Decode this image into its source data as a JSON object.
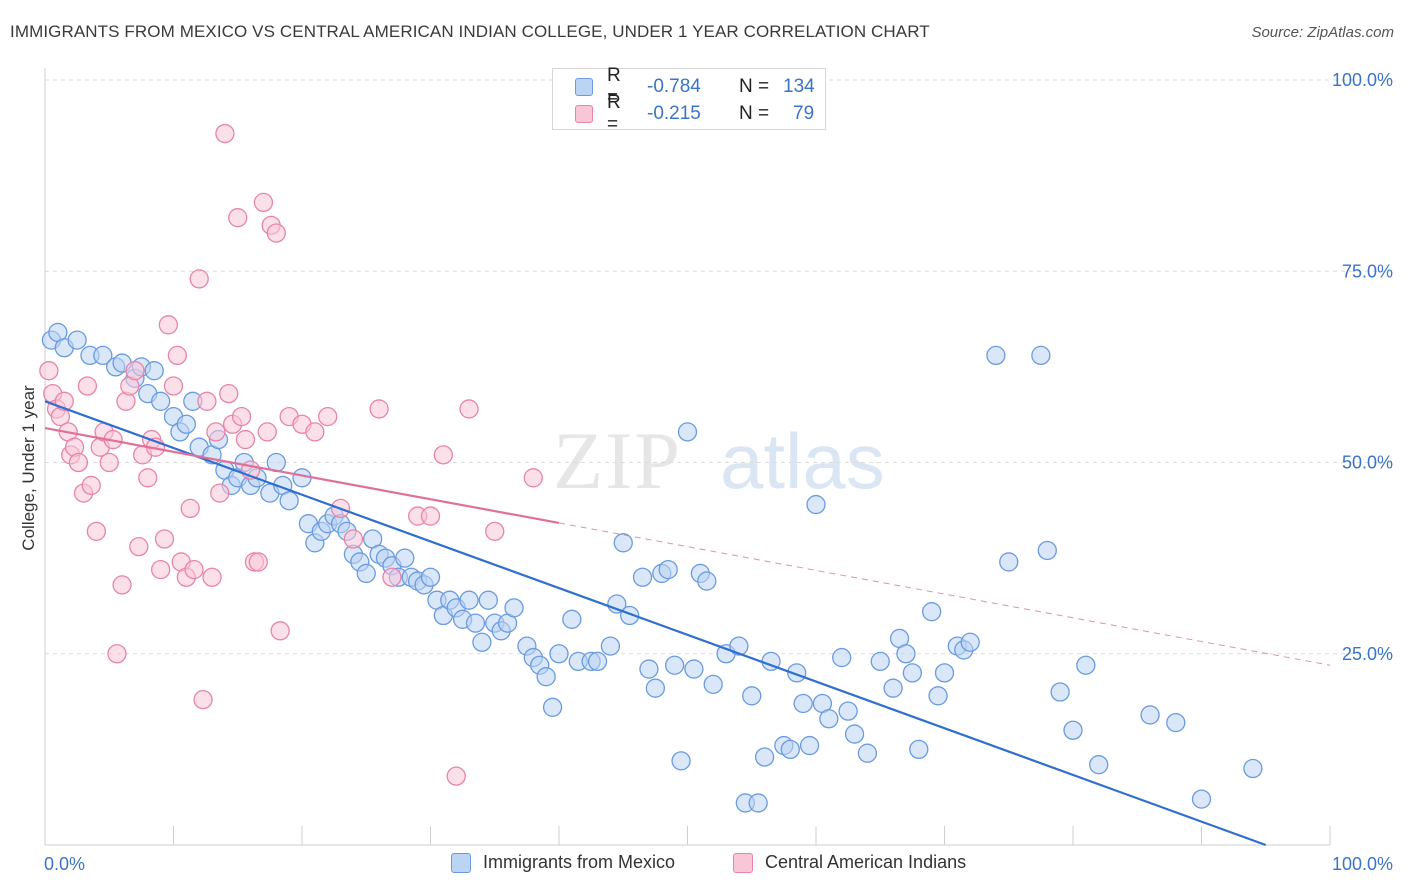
{
  "title": "IMMIGRANTS FROM MEXICO VS CENTRAL AMERICAN INDIAN COLLEGE, UNDER 1 YEAR CORRELATION CHART",
  "source": "Source: ZipAtlas.com",
  "watermark": {
    "zip": "ZIP",
    "atlas": "atlas"
  },
  "legend": {
    "rows": [
      {
        "r_label": "R =",
        "r_value": "-0.784",
        "n_label": "N =",
        "n_value": "134",
        "color": "#6a9be0",
        "fill": "#bcd4f4"
      },
      {
        "r_label": "R =",
        "r_value": "-0.215",
        "n_label": "N =",
        "n_value": "79",
        "color": "#e884a8",
        "fill": "#f9c6d7"
      }
    ]
  },
  "bottom_legend": {
    "items": [
      "Immigrants from Mexico",
      "Central American Indians"
    ]
  },
  "chart_data": {
    "type": "scatter",
    "xlabel": "",
    "ylabel": "College, Under 1 year",
    "xlim": [
      0,
      100
    ],
    "ylim": [
      0,
      100
    ],
    "x_tick_labels": [
      "0.0%",
      "100.0%"
    ],
    "y_tick_labels": [
      "25.0%",
      "50.0%",
      "75.0%",
      "100.0%"
    ],
    "y_tick_values": [
      25,
      50,
      75,
      100
    ],
    "grid": true,
    "grid_style": "dashed",
    "legend_position": "top-center",
    "series": [
      {
        "name": "Immigrants from Mexico",
        "color": "#6a9be0",
        "fill": "#bcd4f4",
        "trend_color": "#2f6fd0",
        "trend": {
          "x0": 0,
          "y0": 58,
          "x1": 95,
          "y1": 0,
          "dashed_from": null
        },
        "points": [
          [
            0.5,
            66
          ],
          [
            1,
            67
          ],
          [
            1.5,
            65
          ],
          [
            2.5,
            66
          ],
          [
            3.5,
            64
          ],
          [
            4.5,
            64
          ],
          [
            5.5,
            62.5
          ],
          [
            6,
            63
          ],
          [
            7,
            61
          ],
          [
            7.5,
            62.5
          ],
          [
            8,
            59
          ],
          [
            8.5,
            62
          ],
          [
            9,
            58
          ],
          [
            10,
            56
          ],
          [
            10.5,
            54
          ],
          [
            11,
            55
          ],
          [
            11.5,
            58
          ],
          [
            12,
            52
          ],
          [
            13,
            51
          ],
          [
            13.5,
            53
          ],
          [
            14,
            49
          ],
          [
            14.5,
            47
          ],
          [
            15,
            48
          ],
          [
            15.5,
            50
          ],
          [
            16,
            47
          ],
          [
            16.5,
            48
          ],
          [
            17.5,
            46
          ],
          [
            18,
            50
          ],
          [
            18.5,
            47
          ],
          [
            19,
            45
          ],
          [
            20,
            48
          ],
          [
            20.5,
            42
          ],
          [
            21,
            39.5
          ],
          [
            21.5,
            41
          ],
          [
            22,
            42
          ],
          [
            22.5,
            43
          ],
          [
            23,
            42
          ],
          [
            23.5,
            41
          ],
          [
            24,
            38
          ],
          [
            24.5,
            37
          ],
          [
            25,
            35.5
          ],
          [
            25.5,
            40
          ],
          [
            26,
            38
          ],
          [
            26.5,
            37.5
          ],
          [
            27,
            36.5
          ],
          [
            27.5,
            35
          ],
          [
            28,
            37.5
          ],
          [
            28.5,
            35
          ],
          [
            29,
            34.5
          ],
          [
            29.5,
            34
          ],
          [
            30,
            35
          ],
          [
            30.5,
            32
          ],
          [
            31,
            30
          ],
          [
            31.5,
            32
          ],
          [
            32,
            31
          ],
          [
            32.5,
            29.5
          ],
          [
            33,
            32
          ],
          [
            33.5,
            29
          ],
          [
            34,
            26.5
          ],
          [
            34.5,
            32
          ],
          [
            35,
            29
          ],
          [
            35.5,
            28
          ],
          [
            36,
            29
          ],
          [
            36.5,
            31
          ],
          [
            37.5,
            26
          ],
          [
            38,
            24.5
          ],
          [
            38.5,
            23.5
          ],
          [
            39,
            22
          ],
          [
            39.5,
            18
          ],
          [
            40,
            25
          ],
          [
            41,
            29.5
          ],
          [
            41.5,
            24
          ],
          [
            42.5,
            24
          ],
          [
            43,
            24
          ],
          [
            44,
            26
          ],
          [
            44.5,
            31.5
          ],
          [
            45,
            39.5
          ],
          [
            45.5,
            30
          ],
          [
            46.5,
            35
          ],
          [
            47,
            23
          ],
          [
            47.5,
            20.5
          ],
          [
            48,
            35.5
          ],
          [
            48.5,
            36
          ],
          [
            49,
            23.5
          ],
          [
            49.5,
            11
          ],
          [
            50,
            54
          ],
          [
            50.5,
            23
          ],
          [
            51,
            35.5
          ],
          [
            51.5,
            34.5
          ],
          [
            52,
            21
          ],
          [
            53,
            25
          ],
          [
            54,
            26
          ],
          [
            54.5,
            5.5
          ],
          [
            55,
            19.5
          ],
          [
            55.5,
            5.5
          ],
          [
            56,
            11.5
          ],
          [
            56.5,
            24
          ],
          [
            57.5,
            13
          ],
          [
            58,
            12.5
          ],
          [
            58.5,
            22.5
          ],
          [
            59,
            18.5
          ],
          [
            59.5,
            13
          ],
          [
            60,
            44.5
          ],
          [
            60.5,
            18.5
          ],
          [
            61,
            16.5
          ],
          [
            62,
            24.5
          ],
          [
            62.5,
            17.5
          ],
          [
            63,
            14.5
          ],
          [
            64,
            12
          ],
          [
            65,
            24
          ],
          [
            66,
            20.5
          ],
          [
            66.5,
            27
          ],
          [
            67,
            25
          ],
          [
            67.5,
            22.5
          ],
          [
            68,
            12.5
          ],
          [
            69,
            30.5
          ],
          [
            69.5,
            19.5
          ],
          [
            70,
            22.5
          ],
          [
            71,
            26
          ],
          [
            71.5,
            25.5
          ],
          [
            72,
            26.5
          ],
          [
            74,
            64
          ],
          [
            75,
            37
          ],
          [
            77.5,
            64
          ],
          [
            78,
            38.5
          ],
          [
            79,
            20
          ],
          [
            80,
            15
          ],
          [
            81,
            23.5
          ],
          [
            82,
            10.5
          ],
          [
            86,
            17
          ],
          [
            88,
            16
          ],
          [
            90,
            6
          ],
          [
            94,
            10
          ]
        ]
      },
      {
        "name": "Central American Indians",
        "color": "#e884a8",
        "fill": "#f9c6d7",
        "trend_color": "#e0709a",
        "trend": {
          "x0": 0,
          "y0": 54.5,
          "x1": 100,
          "y1": 23.5,
          "dashed_from": 40
        },
        "points": [
          [
            0.3,
            62
          ],
          [
            0.6,
            59
          ],
          [
            0.9,
            57
          ],
          [
            1.2,
            56
          ],
          [
            1.5,
            58
          ],
          [
            1.8,
            54
          ],
          [
            2,
            51
          ],
          [
            2.3,
            52
          ],
          [
            2.6,
            50
          ],
          [
            3,
            46
          ],
          [
            3.3,
            60
          ],
          [
            3.6,
            47
          ],
          [
            4,
            41
          ],
          [
            4.3,
            52
          ],
          [
            4.6,
            54
          ],
          [
            5,
            50
          ],
          [
            5.3,
            53
          ],
          [
            5.6,
            25
          ],
          [
            6,
            34
          ],
          [
            6.3,
            58
          ],
          [
            6.6,
            60
          ],
          [
            7,
            62
          ],
          [
            7.3,
            39
          ],
          [
            7.6,
            51
          ],
          [
            8,
            48
          ],
          [
            8.3,
            53
          ],
          [
            8.6,
            52
          ],
          [
            9,
            36
          ],
          [
            9.3,
            40
          ],
          [
            9.6,
            68
          ],
          [
            10,
            60
          ],
          [
            10.3,
            64
          ],
          [
            10.6,
            37
          ],
          [
            11,
            35
          ],
          [
            11.3,
            44
          ],
          [
            11.6,
            36
          ],
          [
            12,
            74
          ],
          [
            12.3,
            19
          ],
          [
            12.6,
            58
          ],
          [
            13,
            35
          ],
          [
            13.3,
            54
          ],
          [
            13.6,
            46
          ],
          [
            14,
            93
          ],
          [
            14.3,
            59
          ],
          [
            14.6,
            55
          ],
          [
            15,
            82
          ],
          [
            15.3,
            56
          ],
          [
            15.6,
            53
          ],
          [
            16,
            49
          ],
          [
            16.3,
            37
          ],
          [
            16.6,
            37
          ],
          [
            17,
            84
          ],
          [
            17.3,
            54
          ],
          [
            17.6,
            81
          ],
          [
            18,
            80
          ],
          [
            18.3,
            28
          ],
          [
            19,
            56
          ],
          [
            20,
            55
          ],
          [
            21,
            54
          ],
          [
            22,
            56
          ],
          [
            23,
            44
          ],
          [
            24,
            40
          ],
          [
            26,
            57
          ],
          [
            27,
            35
          ],
          [
            29,
            43
          ],
          [
            30,
            43
          ],
          [
            31,
            51
          ],
          [
            32,
            9
          ],
          [
            33,
            57
          ],
          [
            35,
            41
          ],
          [
            38,
            48
          ]
        ]
      }
    ]
  }
}
